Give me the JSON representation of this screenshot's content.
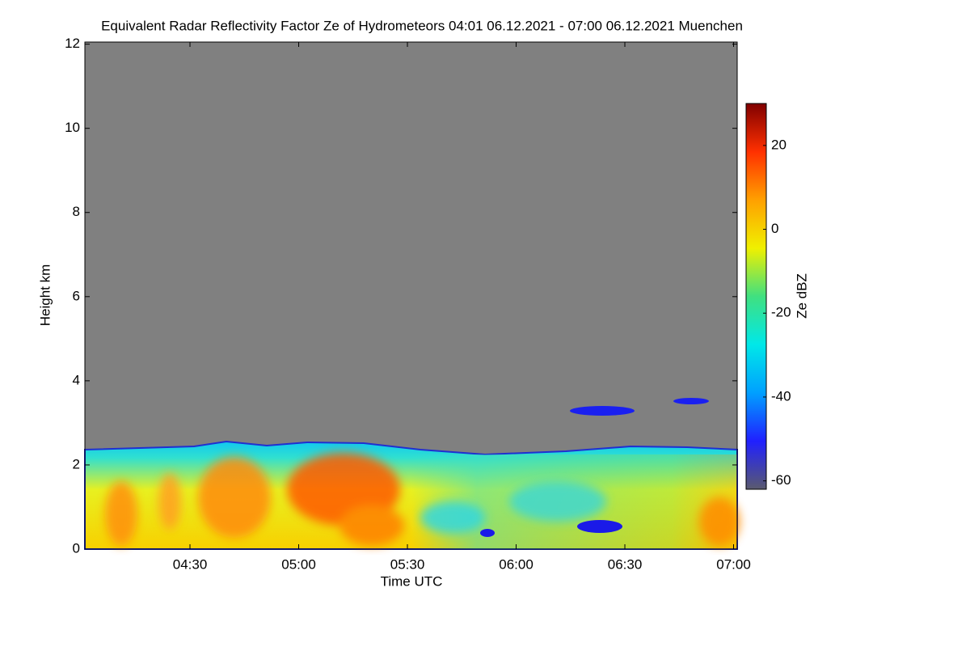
{
  "chart_data": {
    "type": "heatmap",
    "title": "Equivalent Radar Reflectivity Factor Ze of Hydrometeors   04:01 06.12.2021 - 07:00 06.12.2021 Muenchen",
    "xlabel": "Time UTC",
    "ylabel": "Height km",
    "xlim": [
      241,
      421
    ],
    "xticks": [
      {
        "value": 270,
        "label": "04:30"
      },
      {
        "value": 300,
        "label": "05:00"
      },
      {
        "value": 330,
        "label": "05:30"
      },
      {
        "value": 360,
        "label": "06:00"
      },
      {
        "value": 390,
        "label": "06:30"
      },
      {
        "value": 420,
        "label": "07:00"
      }
    ],
    "ylim": [
      0,
      12.05
    ],
    "yticks": [
      0,
      2,
      4,
      6,
      8,
      10,
      12
    ],
    "colorbar": {
      "label": "Ze dBZ",
      "lim": [
        -62,
        30
      ],
      "ticks": [
        -60,
        -40,
        -20,
        0,
        20
      ],
      "colors": [
        "#5a5a6e",
        "#2020ff",
        "#00a0ff",
        "#00e8e8",
        "#40e080",
        "#f0f000",
        "#ffa000",
        "#ff3000",
        "#800000"
      ]
    }
  }
}
